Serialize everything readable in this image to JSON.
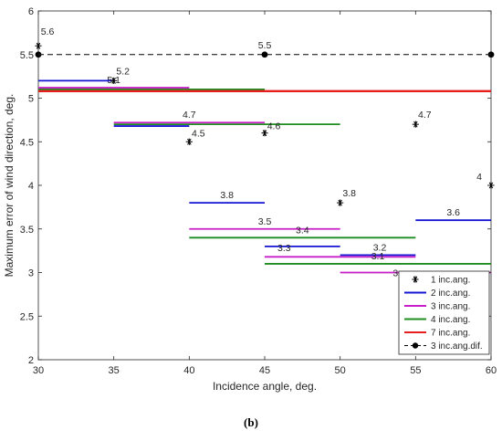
{
  "caption": "(b)",
  "chart_data": {
    "type": "line",
    "title": "",
    "xlabel": "Incidence angle, deg.",
    "ylabel": "Maximum error of wind direction, deg.",
    "xlim": [
      30,
      60
    ],
    "ylim": [
      2,
      6
    ],
    "xticks": [
      "30",
      "35",
      "40",
      "45",
      "50",
      "55",
      "60"
    ],
    "yticks": [
      "2",
      "2.5",
      "3",
      "3.5",
      "4",
      "4.5",
      "5",
      "5.5",
      "6"
    ],
    "grid": false,
    "legend_position": "bottom-right",
    "series": [
      {
        "name": "1 inc.ang.",
        "color": "#000000",
        "style": "asterisk",
        "points": [
          {
            "x": 30,
            "y": 5.6,
            "label": "5.6"
          },
          {
            "x": 35,
            "y": 5.2,
            "label": "5.2"
          },
          {
            "x": 40,
            "y": 4.5,
            "label": "4.5"
          },
          {
            "x": 45,
            "y": 4.6,
            "label": "4.6"
          },
          {
            "x": 50,
            "y": 3.8,
            "label": "3.8"
          },
          {
            "x": 55,
            "y": 4.7,
            "label": "4.7"
          },
          {
            "x": 60,
            "y": 4.0,
            "label": "4"
          }
        ]
      },
      {
        "name": "2 inc.ang.",
        "color": "#1414d2",
        "style": "segments",
        "segments": [
          {
            "x0": 30,
            "x1": 35,
            "y": 5.2,
            "label": ""
          },
          {
            "x0": 35,
            "x1": 40,
            "y": 4.68,
            "label": ""
          },
          {
            "x0": 40,
            "x1": 45,
            "y": 3.8,
            "label": "3.8"
          },
          {
            "x0": 45,
            "x1": 50,
            "y": 3.3,
            "label": "3.3"
          },
          {
            "x0": 50,
            "x1": 55,
            "y": 3.2,
            "label": "3.2"
          },
          {
            "x0": 55,
            "x1": 60,
            "y": 3.6,
            "label": "3.6"
          }
        ]
      },
      {
        "name": "3 inc.ang.",
        "color": "#c81ec8",
        "style": "segments",
        "segments": [
          {
            "x0": 30,
            "x1": 40,
            "y": 5.12,
            "label": "5.1"
          },
          {
            "x0": 35,
            "x1": 45,
            "y": 4.72,
            "label": "4.7"
          },
          {
            "x0": 40,
            "x1": 50,
            "y": 3.5,
            "label": "3.5"
          },
          {
            "x0": 45,
            "x1": 55,
            "y": 3.18,
            "label": ""
          },
          {
            "x0": 50,
            "x1": 60,
            "y": 3.0,
            "label": "3"
          }
        ]
      },
      {
        "name": "4 inc.ang.",
        "color": "#1e8c1e",
        "style": "segments",
        "segments": [
          {
            "x0": 30,
            "x1": 45,
            "y": 5.1,
            "label": ""
          },
          {
            "x0": 35,
            "x1": 50,
            "y": 4.7,
            "label": ""
          },
          {
            "x0": 40,
            "x1": 55,
            "y": 3.4,
            "label": "3.4"
          },
          {
            "x0": 45,
            "x1": 60,
            "y": 3.1,
            "label": "3.1"
          }
        ]
      },
      {
        "name": "7 inc.ang.",
        "color": "#e61e1e",
        "style": "segments",
        "segments": [
          {
            "x0": 30,
            "x1": 60,
            "y": 5.08,
            "label": ""
          }
        ]
      },
      {
        "name": "3 inc.ang.dif.",
        "color": "#000000",
        "style": "dashed-dots",
        "points": [
          {
            "x": 30,
            "y": 5.5,
            "label": ""
          },
          {
            "x": 45,
            "y": 5.5,
            "label": "5.5"
          },
          {
            "x": 60,
            "y": 5.5,
            "label": ""
          }
        ]
      }
    ]
  }
}
